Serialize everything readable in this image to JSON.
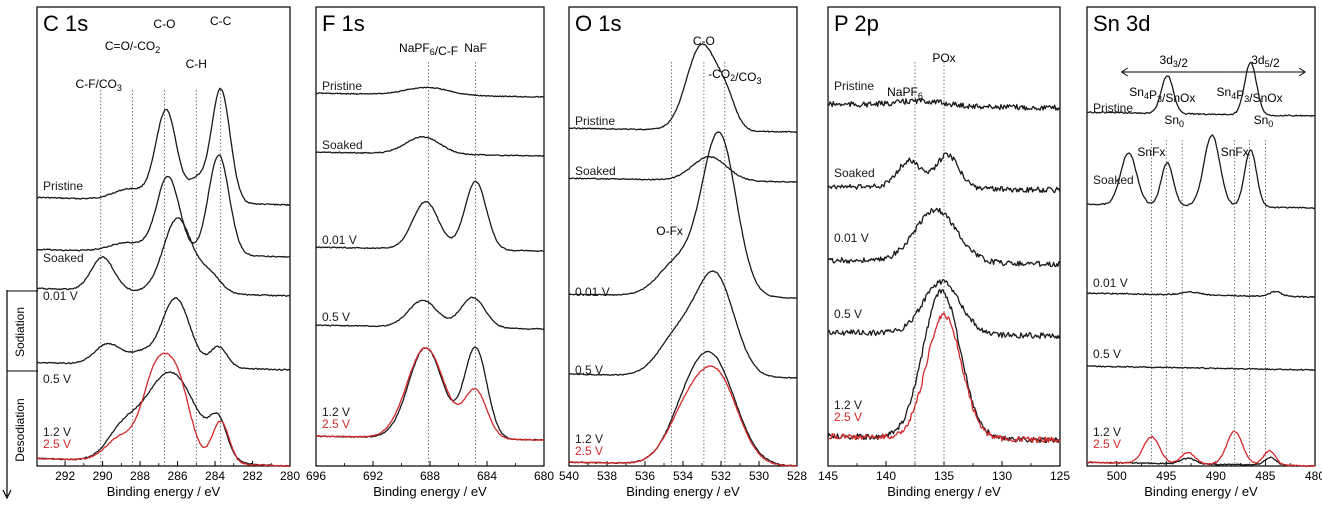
{
  "figure": {
    "xlabel": "Binding energy / eV",
    "process_labels": {
      "sodiation": "Sodiation",
      "desodiation": "Desodiation"
    }
  },
  "colors": {
    "trace": "#1a1a1a",
    "highlight": "#d42a2a",
    "axis": "#000000",
    "guide": "#444444"
  },
  "chart_data": [
    {
      "type": "line",
      "panel_title": "C 1s",
      "xlim": [
        293.5,
        280
      ],
      "xticks": [
        292,
        290,
        288,
        286,
        284,
        282,
        280
      ],
      "xlabel": "Binding energy / eV",
      "grid": false,
      "peaks": [
        {
          "label": "C-F/CO3",
          "x": 290.1
        },
        {
          "label": "C=O/-CO2",
          "x": 288.4
        },
        {
          "label": "C-O",
          "x": 286.7
        },
        {
          "label": "C-H",
          "x": 285.0
        },
        {
          "label": "C-C",
          "x": 283.7
        }
      ],
      "series": [
        {
          "name": "Pristine",
          "label": "Pristine",
          "color": "#1a1a1a",
          "peaks": [
            {
              "x": 286.6,
              "h": 0.95,
              "w": 0.55
            },
            {
              "x": 283.7,
              "h": 1.2,
              "w": 0.5
            },
            {
              "x": 285.0,
              "h": 0.22,
              "w": 0.45
            },
            {
              "x": 288.5,
              "h": 0.12,
              "w": 0.9
            }
          ]
        },
        {
          "name": "Soaked",
          "label": "Soaked",
          "color": "#1a1a1a",
          "peaks": [
            {
              "x": 286.5,
              "h": 0.8,
              "w": 0.6
            },
            {
              "x": 283.8,
              "h": 1.05,
              "w": 0.55
            },
            {
              "x": 288.6,
              "h": 0.1,
              "w": 1.0
            }
          ]
        },
        {
          "name": "0.01 V",
          "label": "0.01 V",
          "color": "#1a1a1a",
          "peaks": [
            {
              "x": 290.0,
              "h": 0.35,
              "w": 0.6
            },
            {
              "x": 286.0,
              "h": 0.78,
              "w": 0.75
            },
            {
              "x": 284.3,
              "h": 0.2,
              "w": 0.6
            }
          ]
        },
        {
          "name": "0.5 V",
          "label": "0.5 V",
          "color": "#1a1a1a",
          "peaks": [
            {
              "x": 289.7,
              "h": 0.22,
              "w": 0.7
            },
            {
              "x": 286.1,
              "h": 0.72,
              "w": 0.75
            },
            {
              "x": 283.8,
              "h": 0.22,
              "w": 0.45
            },
            {
              "x": 288.0,
              "h": 0.12,
              "w": 0.6
            }
          ]
        },
        {
          "name": "1.2 V",
          "label": "1.2 V",
          "color": "#1a1a1a",
          "peaks": [
            {
              "x": 286.4,
              "h": 0.95,
              "w": 1.4
            },
            {
              "x": 283.8,
              "h": 0.35,
              "w": 0.45
            },
            {
              "x": 289.0,
              "h": 0.25,
              "w": 0.8
            }
          ]
        },
        {
          "name": "2.5 V",
          "label": "2.5 V",
          "color": "#d42a2a",
          "peaks": [
            {
              "x": 287.2,
              "h": 0.85,
              "w": 0.7
            },
            {
              "x": 286.0,
              "h": 0.8,
              "w": 0.7
            },
            {
              "x": 283.7,
              "h": 0.45,
              "w": 0.45
            },
            {
              "x": 289.0,
              "h": 0.25,
              "w": 0.8
            }
          ]
        }
      ]
    },
    {
      "type": "line",
      "panel_title": "F 1s",
      "xlim": [
        696,
        680
      ],
      "xticks": [
        696,
        692,
        688,
        684,
        680
      ],
      "xlabel": "Binding energy / eV",
      "grid": false,
      "peaks": [
        {
          "label": "NaPF6/C-F",
          "x": 688.1
        },
        {
          "label": "NaF",
          "x": 684.8
        }
      ],
      "series": [
        {
          "name": "Pristine",
          "label": "Pristine",
          "color": "#1a1a1a",
          "peaks": [
            {
              "x": 688.2,
              "h": 0.08,
              "w": 1.5
            }
          ]
        },
        {
          "name": "Soaked",
          "label": "Soaked",
          "color": "#1a1a1a",
          "peaks": [
            {
              "x": 688.5,
              "h": 0.18,
              "w": 1.2
            }
          ]
        },
        {
          "name": "0.01 V",
          "label": "0.01 V",
          "color": "#1a1a1a",
          "peaks": [
            {
              "x": 688.3,
              "h": 0.5,
              "w": 0.9
            },
            {
              "x": 684.8,
              "h": 0.72,
              "w": 0.75
            }
          ]
        },
        {
          "name": "0.5 V",
          "label": "0.5 V",
          "color": "#1a1a1a",
          "peaks": [
            {
              "x": 688.5,
              "h": 0.28,
              "w": 1.0
            },
            {
              "x": 685.0,
              "h": 0.32,
              "w": 0.85
            }
          ]
        },
        {
          "name": "1.2 V",
          "label": "1.2 V",
          "color": "#1a1a1a",
          "peaks": [
            {
              "x": 688.3,
              "h": 0.95,
              "w": 1.2
            },
            {
              "x": 684.8,
              "h": 0.95,
              "w": 0.8
            }
          ]
        },
        {
          "name": "2.5 V",
          "label": "2.5 V",
          "color": "#d42a2a",
          "peaks": [
            {
              "x": 688.3,
              "h": 0.95,
              "w": 1.3
            },
            {
              "x": 684.8,
              "h": 0.5,
              "w": 0.8
            }
          ]
        }
      ]
    },
    {
      "type": "line",
      "panel_title": "O 1s",
      "xlim": [
        540,
        528
      ],
      "xticks": [
        540,
        538,
        536,
        534,
        532,
        530,
        528
      ],
      "xlabel": "Binding energy / eV",
      "grid": false,
      "peaks": [
        {
          "label": "C-O",
          "x": 532.9
        },
        {
          "label": "-CO2/CO3",
          "x": 531.8
        },
        {
          "label": "O-Fx",
          "x": 534.6
        }
      ],
      "series": [
        {
          "name": "Pristine",
          "label": "Pristine",
          "color": "#1a1a1a",
          "peaks": [
            {
              "x": 533.0,
              "h": 0.9,
              "w": 0.8
            },
            {
              "x": 531.7,
              "h": 0.25,
              "w": 0.5
            }
          ]
        },
        {
          "name": "Soaked",
          "label": "Soaked",
          "color": "#1a1a1a",
          "peaks": [
            {
              "x": 532.6,
              "h": 0.25,
              "w": 0.9
            }
          ]
        },
        {
          "name": "0.01 V",
          "label": "0.01 V",
          "color": "#1a1a1a",
          "peaks": [
            {
              "x": 532.1,
              "h": 1.7,
              "w": 0.9
            },
            {
              "x": 534.3,
              "h": 0.35,
              "w": 1.0
            }
          ]
        },
        {
          "name": "0.5 V",
          "label": "0.5 V",
          "color": "#1a1a1a",
          "peaks": [
            {
              "x": 532.3,
              "h": 1.05,
              "w": 1.0
            },
            {
              "x": 534.3,
              "h": 0.4,
              "w": 1.0
            }
          ]
        },
        {
          "name": "1.2 V",
          "label": "1.2 V",
          "color": "#1a1a1a",
          "peaks": [
            {
              "x": 532.4,
              "h": 1.05,
              "w": 1.2
            },
            {
              "x": 533.9,
              "h": 0.35,
              "w": 1.0
            }
          ]
        },
        {
          "name": "2.5 V",
          "label": "2.5 V",
          "color": "#d42a2a",
          "peaks": [
            {
              "x": 532.2,
              "h": 0.9,
              "w": 1.1
            },
            {
              "x": 533.9,
              "h": 0.45,
              "w": 1.0
            }
          ]
        }
      ]
    },
    {
      "type": "line",
      "panel_title": "P 2p",
      "xlim": [
        145,
        125
      ],
      "xticks": [
        145,
        140,
        135,
        130,
        125
      ],
      "xlabel": "Binding energy / eV",
      "grid": false,
      "peaks": [
        {
          "label": "NaPF6",
          "x": 137.5
        },
        {
          "label": "POx",
          "x": 135.0
        }
      ],
      "series": [
        {
          "name": "Pristine",
          "label": "Pristine",
          "color": "#1a1a1a",
          "peaks": [
            {
              "x": 137.0,
              "h": 0.05,
              "w": 2.0
            }
          ]
        },
        {
          "name": "Soaked",
          "label": "Soaked",
          "color": "#1a1a1a",
          "peaks": [
            {
              "x": 138.0,
              "h": 0.28,
              "w": 1.0
            },
            {
              "x": 134.7,
              "h": 0.35,
              "w": 1.0
            }
          ]
        },
        {
          "name": "0.01 V",
          "label": "0.01 V",
          "color": "#1a1a1a",
          "peaks": [
            {
              "x": 135.7,
              "h": 0.55,
              "w": 1.8
            }
          ]
        },
        {
          "name": "0.5 V",
          "label": "0.5 V",
          "color": "#1a1a1a",
          "peaks": [
            {
              "x": 135.2,
              "h": 0.55,
              "w": 1.6
            }
          ]
        },
        {
          "name": "1.2 V",
          "label": "1.2 V",
          "color": "#1a1a1a",
          "peaks": [
            {
              "x": 135.2,
              "h": 1.55,
              "w": 1.6
            }
          ]
        },
        {
          "name": "2.5 V",
          "label": "2.5 V",
          "color": "#d42a2a",
          "peaks": [
            {
              "x": 135.0,
              "h": 1.3,
              "w": 1.5
            }
          ]
        }
      ]
    },
    {
      "type": "line",
      "panel_title": "Sn 3d",
      "xlim": [
        503,
        480
      ],
      "xticks": [
        500,
        495,
        490,
        485,
        480
      ],
      "xlabel": "Binding energy / eV",
      "grid": false,
      "spin_orbit": [
        {
          "label": "3d3/2",
          "from": 499.5,
          "to": 489.0
        },
        {
          "label": "3d5/2",
          "from": 489.0,
          "to": 481.0
        }
      ],
      "peaks": [
        {
          "label": "Sn4P3/SnOx",
          "x": 495.0
        },
        {
          "label": "Sn0",
          "x": 493.4
        },
        {
          "label": "Sn4P3/SnOx",
          "x": 486.6
        },
        {
          "label": "Sn0",
          "x": 485.0
        },
        {
          "label": "SnFx",
          "x": 496.5
        },
        {
          "label": "SnFx",
          "x": 488.1
        }
      ],
      "series": [
        {
          "name": "Pristine",
          "label": "Pristine",
          "color": "#1a1a1a",
          "peaks": [
            {
              "x": 494.9,
              "h": 0.4,
              "w": 0.6
            },
            {
              "x": 486.5,
              "h": 0.55,
              "w": 0.6
            }
          ]
        },
        {
          "name": "Soaked",
          "label": "Soaked",
          "color": "#1a1a1a",
          "peaks": [
            {
              "x": 498.8,
              "h": 0.55,
              "w": 0.8
            },
            {
              "x": 494.9,
              "h": 0.45,
              "w": 0.6
            },
            {
              "x": 490.4,
              "h": 0.75,
              "w": 0.8
            },
            {
              "x": 486.5,
              "h": 0.6,
              "w": 0.6
            }
          ]
        },
        {
          "name": "0.01 V",
          "label": "0.01 V",
          "color": "#1a1a1a",
          "peaks": [
            {
              "x": 492.5,
              "h": 0.03,
              "w": 1.0
            },
            {
              "x": 484.0,
              "h": 0.05,
              "w": 0.6
            }
          ]
        },
        {
          "name": "0.5 V",
          "label": "0.5 V",
          "color": "#1a1a1a",
          "peaks": []
        },
        {
          "name": "1.2 V",
          "label": "1.2 V",
          "color": "#1a1a1a",
          "peaks": [
            {
              "x": 492.8,
              "h": 0.06,
              "w": 0.7
            },
            {
              "x": 484.5,
              "h": 0.08,
              "w": 0.6
            }
          ]
        },
        {
          "name": "2.5 V",
          "label": "2.5 V",
          "color": "#d42a2a",
          "peaks": [
            {
              "x": 496.5,
              "h": 0.28,
              "w": 0.8
            },
            {
              "x": 492.8,
              "h": 0.12,
              "w": 0.7
            },
            {
              "x": 488.1,
              "h": 0.35,
              "w": 0.8
            },
            {
              "x": 484.6,
              "h": 0.15,
              "w": 0.6
            }
          ]
        }
      ]
    }
  ]
}
